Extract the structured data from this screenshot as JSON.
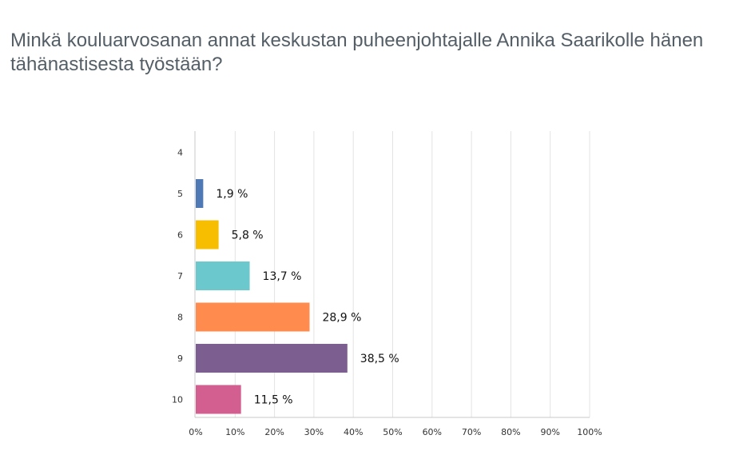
{
  "title": "Minkä kouluarvosanan annat keskustan puheenjohtajalle Annika Saarikolle hänen tähänastisesta työstään?",
  "chart_data": {
    "type": "bar",
    "orientation": "horizontal",
    "title": "Minkä kouluarvosanan annat keskustan puheenjohtajalle Annika Saarikolle hänen tähänastisesta työstään?",
    "categories": [
      "4",
      "5",
      "6",
      "7",
      "8",
      "9",
      "10"
    ],
    "values": [
      0,
      1.9,
      5.8,
      13.7,
      28.9,
      38.5,
      11.5
    ],
    "data_labels": [
      "",
      "1,9 %",
      "5,8 %",
      "13,7 %",
      "28,9 %",
      "38,5 %",
      "11,5 %"
    ],
    "colors": [
      "#4f79b5",
      "#4f79b5",
      "#f7be00",
      "#6bc8cd",
      "#ff8b4f",
      "#7d5e90",
      "#d25f90"
    ],
    "xlim": [
      0,
      100
    ],
    "x_ticks": [
      0,
      10,
      20,
      30,
      40,
      50,
      60,
      70,
      80,
      90,
      100
    ],
    "x_tick_labels": [
      "0%",
      "10%",
      "20%",
      "30%",
      "40%",
      "50%",
      "60%",
      "70%",
      "80%",
      "90%",
      "100%"
    ],
    "xlabel": "",
    "ylabel": "",
    "grid": true,
    "legend": "none"
  }
}
